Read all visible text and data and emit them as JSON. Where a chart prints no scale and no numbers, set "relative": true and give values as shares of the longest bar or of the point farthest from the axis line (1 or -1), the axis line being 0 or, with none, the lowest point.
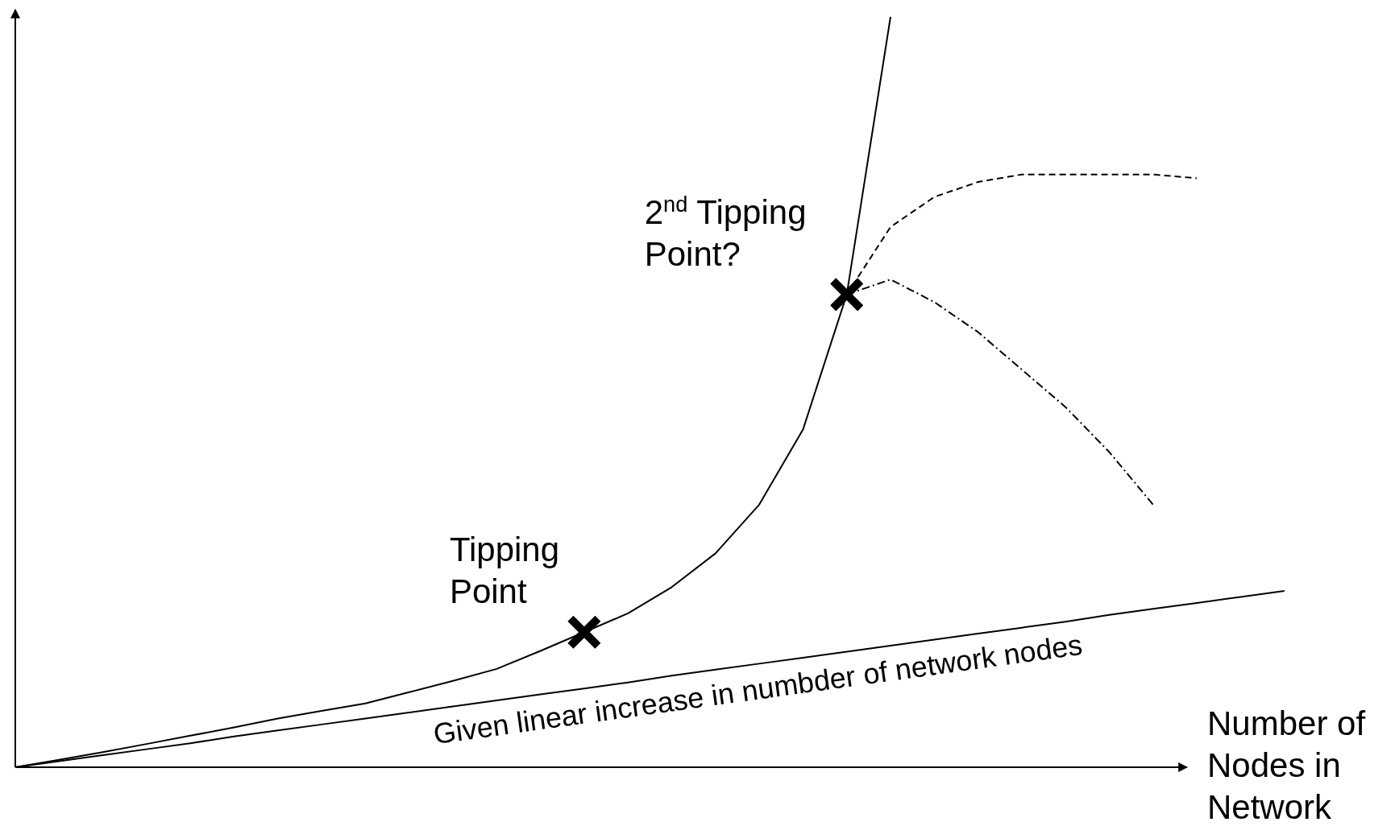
{
  "chart_data": {
    "type": "line",
    "relative": true,
    "xlabel": "Number of Nodes in Network",
    "categories": [
      null,
      null,
      null,
      null,
      null,
      null,
      null,
      null,
      null,
      null,
      null,
      null,
      null,
      null,
      null,
      null,
      null,
      null,
      null,
      null,
      null,
      null,
      null,
      null,
      null,
      null,
      null,
      null,
      null,
      null
    ],
    "annotations": [
      "Tipping Point",
      "2$^{nd}$ Tipping Point?",
      "Given linear increase in numbder of network nodes"
    ],
    "series": [
      {
        "color": "#000000",
        "line_style": "solid",
        "values": [
          0,
          0.01,
          0.02,
          0.031,
          0.042,
          0.053,
          0.065,
          0.075,
          0.085,
          0.1,
          0.115,
          0.131,
          0.155,
          0.18,
          0.205,
          0.24,
          0.285,
          0.35,
          0.45,
          0.63,
          1.0,
          null,
          null,
          null,
          null,
          null,
          null,
          null,
          null,
          null
        ]
      },
      {
        "color": "#000000",
        "line_style": "solid",
        "values": [
          0,
          0.008,
          0.016,
          0.024,
          0.032,
          0.041,
          0.049,
          0.057,
          0.065,
          0.073,
          0.081,
          0.089,
          0.097,
          0.105,
          0.113,
          0.122,
          0.13,
          0.138,
          0.146,
          0.154,
          0.162,
          0.17,
          0.178,
          0.186,
          0.194,
          0.203,
          0.211,
          0.219,
          0.227,
          0.235
        ]
      },
      {
        "color": "#000000",
        "line_style": "dashed",
        "values": [
          null,
          null,
          null,
          null,
          null,
          null,
          null,
          null,
          null,
          null,
          null,
          null,
          null,
          null,
          null,
          null,
          null,
          null,
          null,
          0.63,
          0.72,
          0.76,
          0.78,
          0.79,
          0.79,
          0.79,
          0.79,
          0.785,
          null,
          null
        ]
      },
      {
        "color": "#000000",
        "line_style": "dotted",
        "values": [
          null,
          null,
          null,
          null,
          null,
          null,
          null,
          null,
          null,
          null,
          null,
          null,
          null,
          null,
          null,
          null,
          null,
          null,
          null,
          0.63,
          0.65,
          0.62,
          0.58,
          0.53,
          0.48,
          0.42,
          0.35,
          null,
          null,
          null
        ]
      }
    ]
  }
}
